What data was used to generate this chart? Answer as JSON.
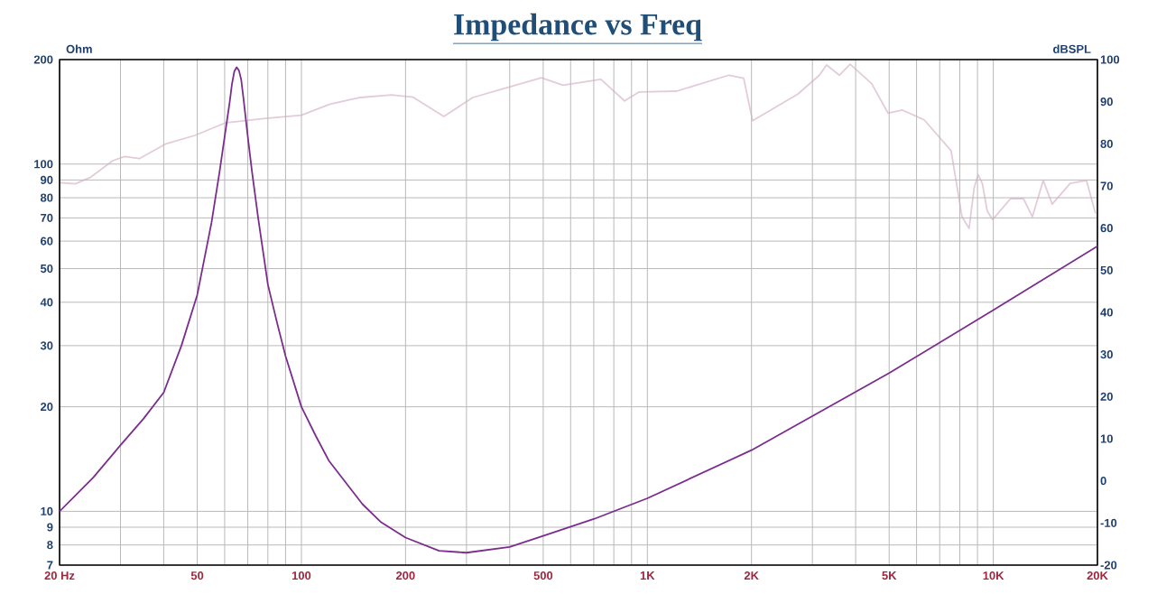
{
  "chart_data": {
    "type": "line",
    "title": "Impedance vs Freq",
    "ylabel": "Ohm",
    "y2label": "dBSPL",
    "log": "xy",
    "grid": true,
    "xlim": [
      20,
      20000
    ],
    "ylim": [
      7,
      200
    ],
    "y2lim": [
      -20,
      100
    ],
    "xticks": [
      {
        "value": 20,
        "label": "20  Hz"
      },
      {
        "value": 30,
        "label": null
      },
      {
        "value": 40,
        "label": null
      },
      50,
      {
        "value": 60,
        "label": null
      },
      {
        "value": 70,
        "label": null
      },
      {
        "value": 80,
        "label": null
      },
      {
        "value": 90,
        "label": null
      },
      100,
      200,
      {
        "value": 300,
        "label": null
      },
      {
        "value": 400,
        "label": null
      },
      500,
      {
        "value": 600,
        "label": null
      },
      {
        "value": 700,
        "label": null
      },
      {
        "value": 800,
        "label": null
      },
      {
        "value": 900,
        "label": null
      },
      {
        "value": 1000,
        "label": "1K"
      },
      {
        "value": 2000,
        "label": "2K"
      },
      {
        "value": 3000,
        "label": null
      },
      {
        "value": 4000,
        "label": null
      },
      {
        "value": 5000,
        "label": "5K"
      },
      {
        "value": 6000,
        "label": null
      },
      {
        "value": 7000,
        "label": null
      },
      {
        "value": 8000,
        "label": null
      },
      {
        "value": 9000,
        "label": null
      },
      {
        "value": 10000,
        "label": "10K"
      },
      {
        "value": 20000,
        "label": "20K"
      }
    ],
    "yticks": [
      7,
      8,
      9,
      10,
      20,
      30,
      40,
      50,
      60,
      70,
      80,
      90,
      100,
      200
    ],
    "y2ticks": [
      -20,
      -10,
      0,
      10,
      20,
      30,
      40,
      50,
      60,
      70,
      80,
      90,
      100
    ],
    "series": [
      {
        "color": "#e3cbd9",
        "axis": "y2",
        "x": [
          20,
          22.2,
          24.5,
          28.5,
          30.8,
          34,
          40.6,
          49.2,
          60.4,
          77.7,
          100,
          121,
          148,
          182,
          210,
          258,
          313,
          403,
          494,
          570,
          734,
          859,
          945,
          1216,
          1722,
          1898,
          2014,
          2722,
          3143,
          3297,
          3589,
          3857,
          4450,
          4960,
          5460,
          6310,
          7550,
          8120,
          8510,
          8800,
          9040,
          9300,
          9600,
          9950,
          11220,
          12220,
          12970,
          13940,
          14800,
          16680,
          18590,
          19730
        ],
        "values": [
          70.8,
          70.5,
          72,
          76,
          77,
          76.5,
          80,
          82,
          85,
          86,
          86.8,
          89.4,
          91,
          91.6,
          91.1,
          86.5,
          91,
          93.6,
          95.7,
          93.9,
          95.3,
          90.2,
          92.3,
          92.5,
          96.3,
          95.6,
          85.5,
          91.8,
          96.3,
          98.7,
          96.3,
          98.9,
          94.3,
          87.3,
          88,
          85.7,
          78.4,
          62.7,
          59.9,
          69.5,
          72.7,
          70.5,
          64.1,
          62,
          67,
          67,
          62.7,
          71.3,
          65.7,
          70.6,
          71.3,
          63.6
        ]
      },
      {
        "color": "#7b2d8e",
        "x": [
          20,
          25,
          30,
          35,
          40,
          45,
          50,
          55,
          58,
          60,
          62,
          63,
          64,
          65,
          66,
          67,
          68,
          70,
          72,
          75,
          80,
          85,
          90,
          100,
          110,
          120,
          150,
          170,
          200,
          250,
          300,
          400,
          500,
          700,
          1000,
          2000,
          5000,
          10000,
          20000
        ],
        "values": [
          10,
          12.5,
          15.5,
          18.5,
          22,
          30,
          42,
          68,
          95,
          120,
          150,
          170,
          185,
          190,
          186,
          175,
          155,
          120,
          95,
          70,
          45,
          35,
          28,
          20,
          16.5,
          14,
          10.5,
          9.3,
          8.4,
          7.7,
          7.6,
          7.9,
          8.5,
          9.5,
          10.9,
          15,
          25,
          38,
          58
        ]
      }
    ]
  }
}
